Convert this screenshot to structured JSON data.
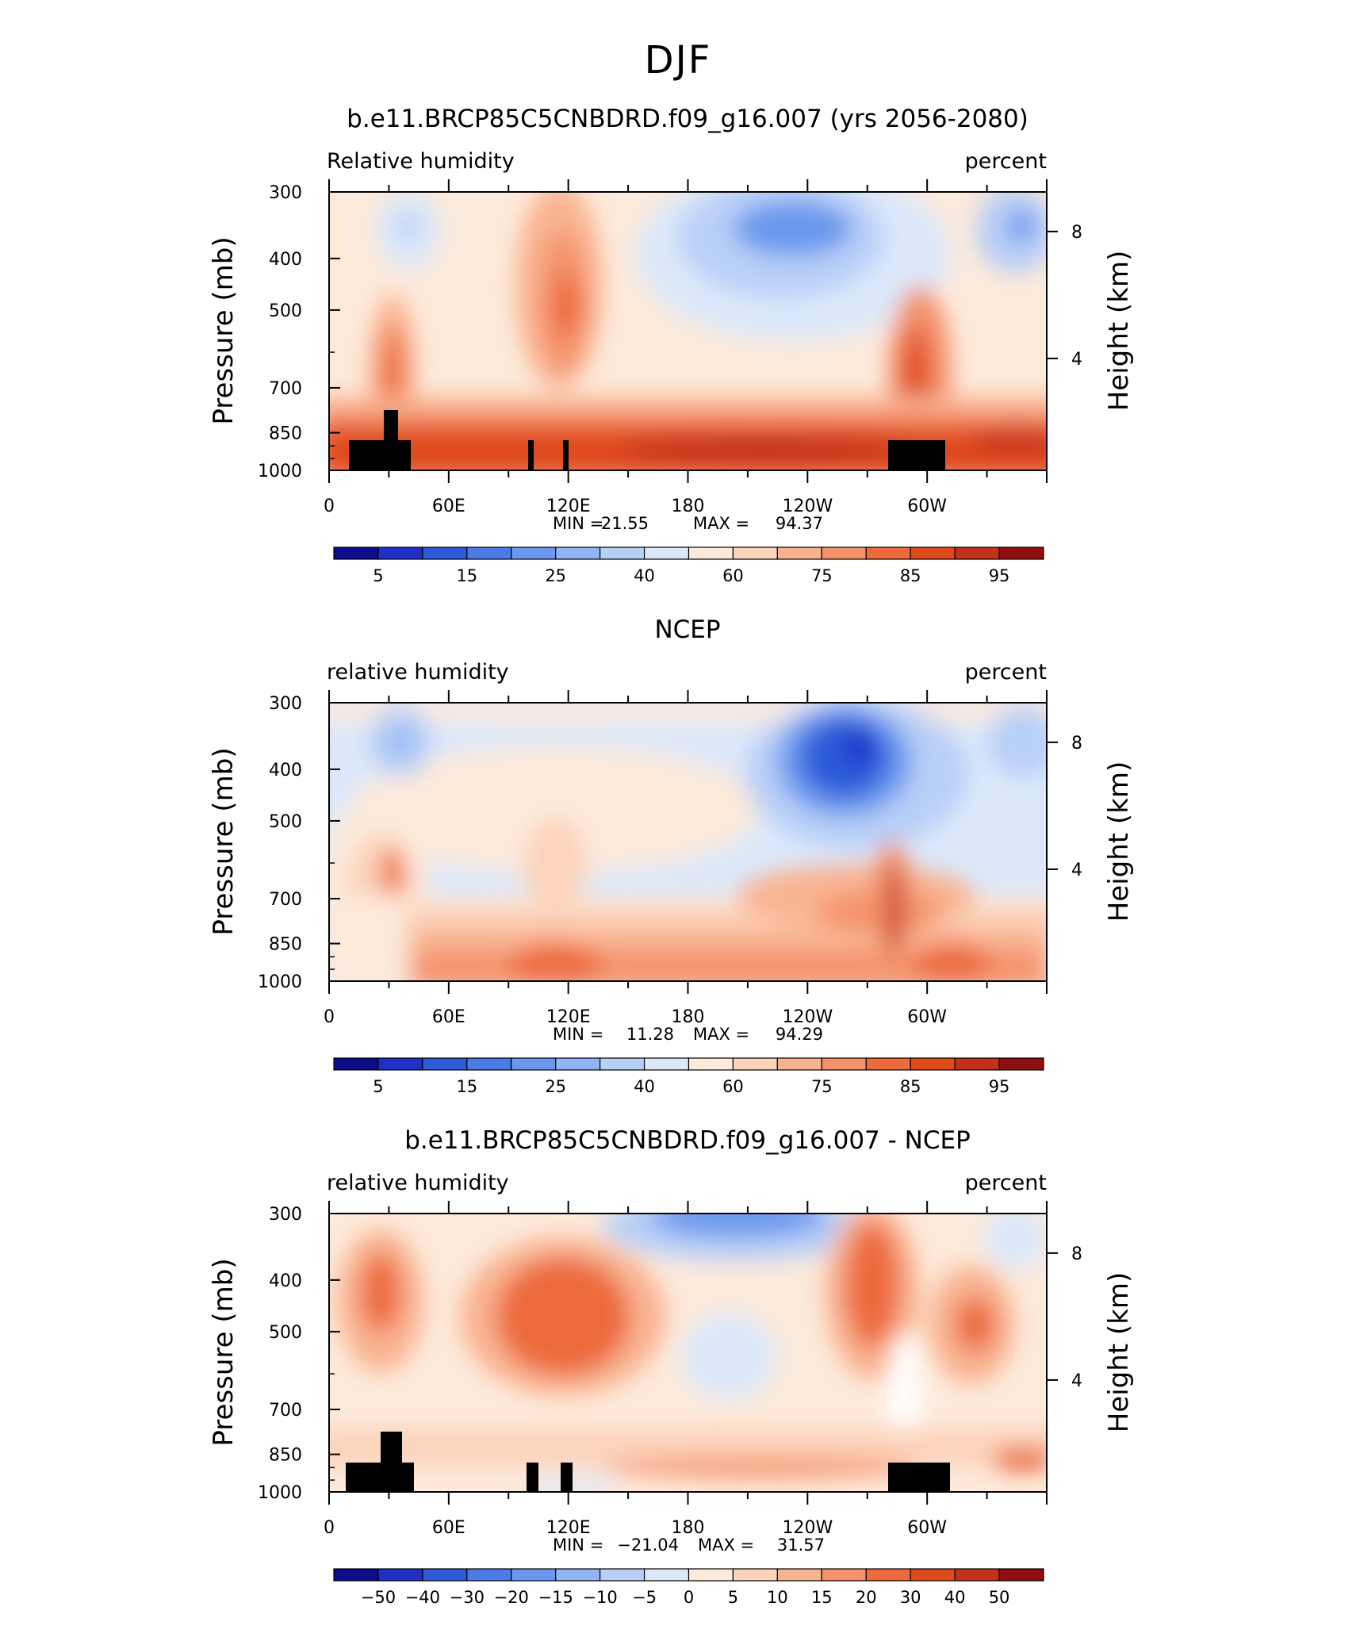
{
  "page_title": "DJF",
  "panels_common": {
    "pressure_ticks": [
      "300",
      "400",
      "500",
      "700",
      "850",
      "1000"
    ],
    "height_ticks": [
      "8",
      "4"
    ],
    "lon_ticks": [
      "0",
      "60E",
      "120E",
      "180",
      "120W",
      "60W"
    ],
    "ylabel": "Pressure (mb)",
    "y2label": "Height (km)",
    "units": "percent",
    "min_label": "MIN =",
    "max_label": "MAX ="
  },
  "panels": [
    {
      "title": "b.e11.BRCP85C5CNBDRD.f09_g16.007 (yrs 2056-2080)",
      "left_label": "Relative humidity",
      "min": "21.55",
      "max": "94.37",
      "colorbar_labels": [
        "5",
        "15",
        "25",
        "40",
        "60",
        "75",
        "85",
        "95"
      ]
    },
    {
      "title": "NCEP",
      "left_label": "relative humidity",
      "min": "11.28",
      "max": "94.29",
      "colorbar_labels": [
        "5",
        "15",
        "25",
        "40",
        "60",
        "75",
        "85",
        "95"
      ]
    },
    {
      "title": "b.e11.BRCP85C5CNBDRD.f09_g16.007 - NCEP",
      "left_label": "relative humidity",
      "min": "−21.04",
      "max": "31.57",
      "colorbar_labels": [
        "−50",
        "−40",
        "−30",
        "−20",
        "−15",
        "−10",
        "−5",
        "0",
        "5",
        "10",
        "15",
        "20",
        "30",
        "40",
        "50"
      ]
    }
  ],
  "chart_data": [
    {
      "type": "heatmap",
      "title": "b.e11.BRCP85C5CNBDRD.f09_g16.007 (yrs 2056-2080)",
      "xlabel": "",
      "ylabel": "Pressure (mb)",
      "y2label": "Height (km)",
      "x": [
        "0",
        "60E",
        "120E",
        "180",
        "120W",
        "60W"
      ],
      "y": [
        300,
        400,
        500,
        700,
        850,
        1000
      ],
      "colorbar_levels": [
        5,
        10,
        15,
        20,
        25,
        30,
        40,
        50,
        60,
        65,
        70,
        75,
        80,
        85,
        90,
        95
      ],
      "min": 21.55,
      "max": 94.37,
      "colors": [
        "#0d0d8c",
        "#1f2fc8",
        "#2c5ad8",
        "#4a7be6",
        "#6b98ee",
        "#91b4f4",
        "#b8cff7",
        "#dce8fa",
        "#fdeadb",
        "#fcd3bb",
        "#f9b391",
        "#f4926a",
        "#ed6a3c",
        "#df4a1c",
        "#c4311a",
        "#8f0f10"
      ]
    },
    {
      "type": "heatmap",
      "title": "NCEP",
      "xlabel": "",
      "ylabel": "Pressure (mb)",
      "y2label": "Height (km)",
      "x": [
        "0",
        "60E",
        "120E",
        "180",
        "120W",
        "60W"
      ],
      "y": [
        300,
        400,
        500,
        700,
        850,
        1000
      ],
      "colorbar_levels": [
        5,
        10,
        15,
        20,
        25,
        30,
        40,
        50,
        60,
        65,
        70,
        75,
        80,
        85,
        90,
        95
      ],
      "min": 11.28,
      "max": 94.29
    },
    {
      "type": "heatmap",
      "title": "b.e11.BRCP85C5CNBDRD.f09_g16.007 - NCEP",
      "xlabel": "",
      "ylabel": "Pressure (mb)",
      "y2label": "Height (km)",
      "x": [
        "0",
        "60E",
        "120E",
        "180",
        "120W",
        "60W"
      ],
      "y": [
        300,
        400,
        500,
        700,
        850,
        1000
      ],
      "colorbar_levels": [
        -50,
        -40,
        -30,
        -20,
        -15,
        -10,
        -5,
        0,
        5,
        10,
        15,
        20,
        30,
        40,
        50
      ],
      "min": -21.04,
      "max": 31.57
    }
  ]
}
